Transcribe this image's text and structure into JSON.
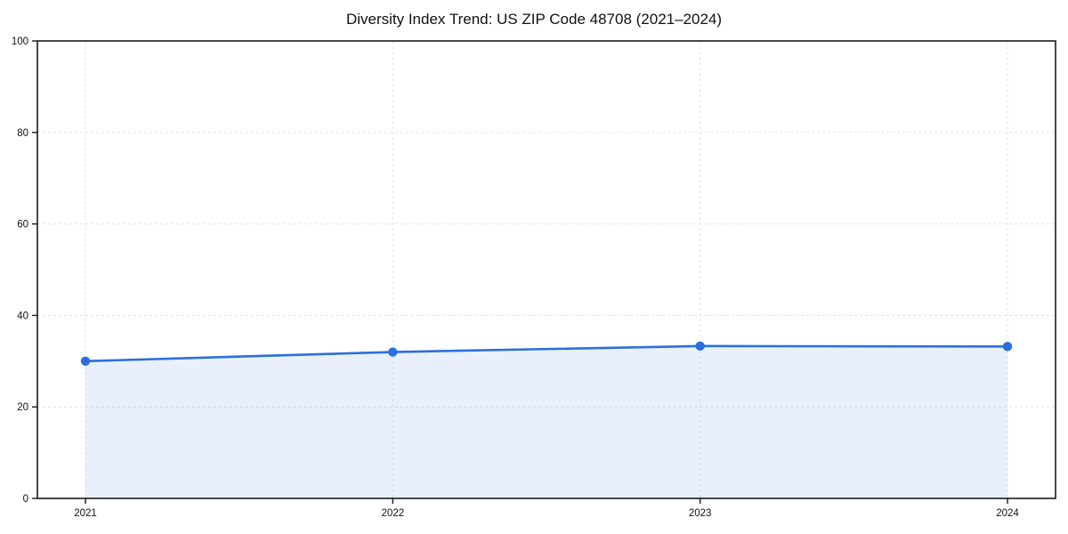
{
  "chart_data": {
    "type": "area",
    "title": "Diversity Index Trend: US ZIP Code 48708 (2021–2024)",
    "categories": [
      "2021",
      "2022",
      "2023",
      "2024"
    ],
    "series": [
      {
        "name": "Diversity Index",
        "values": [
          30,
          32,
          33.3,
          33.2
        ]
      }
    ],
    "xlabel": "",
    "ylabel": "",
    "ylim": [
      0,
      100
    ],
    "yticks": [
      0,
      20,
      40,
      60,
      80,
      100
    ],
    "grid": "dashed both axes",
    "legend_position": "none",
    "colors": {
      "line": "#2b6fdf",
      "marker": "#2b6fdf",
      "fill": "rgba(43,111,223,0.10)",
      "grid": "#e3e3e3",
      "axis": "#1a1a1a",
      "tick_label": "#111111",
      "background": "#ffffff"
    }
  }
}
